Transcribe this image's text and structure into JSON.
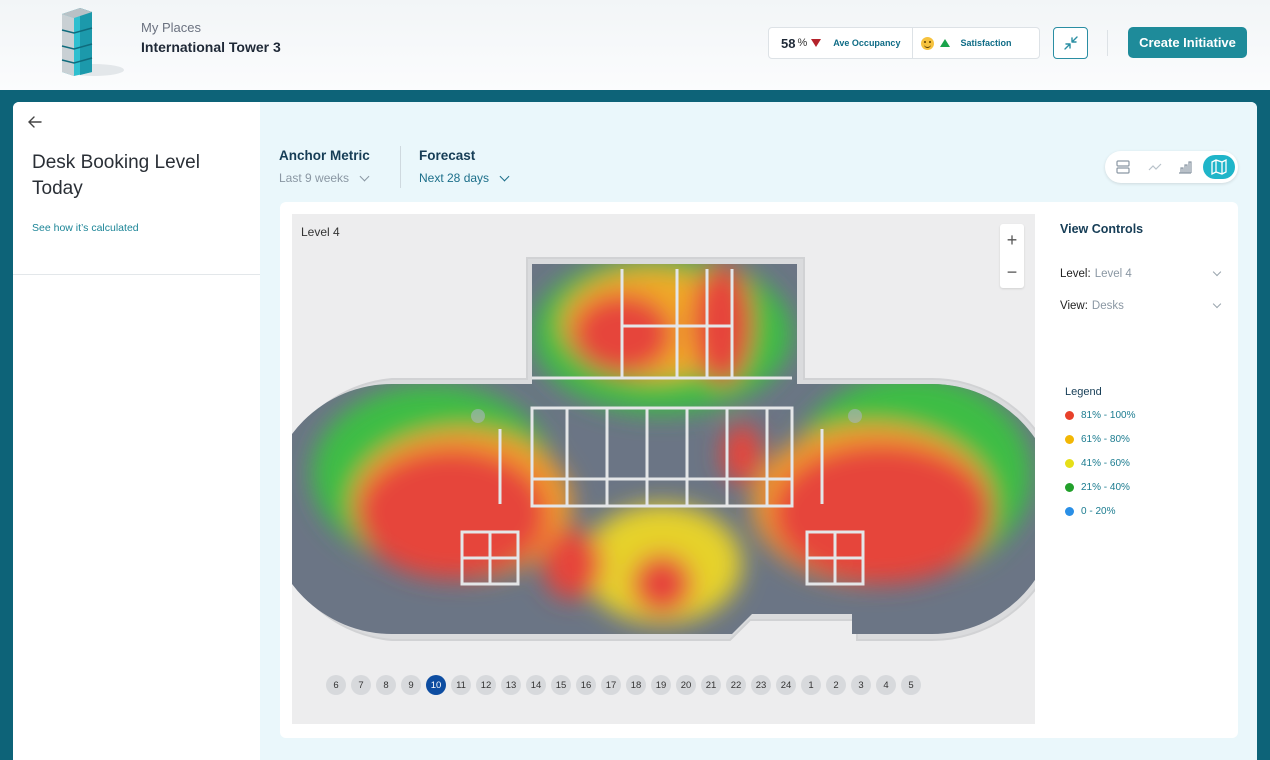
{
  "header": {
    "breadcrumb": "My Places",
    "building_name": "International Tower 3",
    "occupancy_value": "58",
    "occupancy_unit": "%",
    "occupancy_label": "Ave Occupancy",
    "satisfaction_label": "Satisfaction",
    "create_button": "Create Initiative",
    "colors": {
      "accent": "#1e8b9a",
      "down": "#b4232c",
      "up": "#1aa34a"
    }
  },
  "sidebar": {
    "title": "Desk Booking Level Today",
    "calc_link": "See how it’s calculated"
  },
  "metrics": {
    "anchor_title": "Anchor Metric",
    "anchor_value": "Last 9 weeks",
    "forecast_title": "Forecast",
    "forecast_value": "Next 28 days"
  },
  "map": {
    "level_label": "Level 4",
    "zoom_in": "+",
    "zoom_out": "−",
    "days": [
      "6",
      "7",
      "8",
      "9",
      "10",
      "11",
      "12",
      "13",
      "14",
      "15",
      "16",
      "17",
      "18",
      "19",
      "20",
      "21",
      "22",
      "23",
      "24",
      "1",
      "2",
      "3",
      "4",
      "5"
    ],
    "active_day": "10"
  },
  "view_controls": {
    "title": "View Controls",
    "level_key": "Level:",
    "level_value": "Level 4",
    "view_key": "View:",
    "view_value": "Desks"
  },
  "legend": {
    "title": "Legend",
    "items": [
      {
        "label": "81% - 100%",
        "color": "#e8412b"
      },
      {
        "label": "61% - 80%",
        "color": "#f2b705"
      },
      {
        "label": "41% - 60%",
        "color": "#e6df18"
      },
      {
        "label": "21% - 40%",
        "color": "#22a02b"
      },
      {
        "label": "0 - 20%",
        "color": "#2a8fe6"
      }
    ]
  }
}
